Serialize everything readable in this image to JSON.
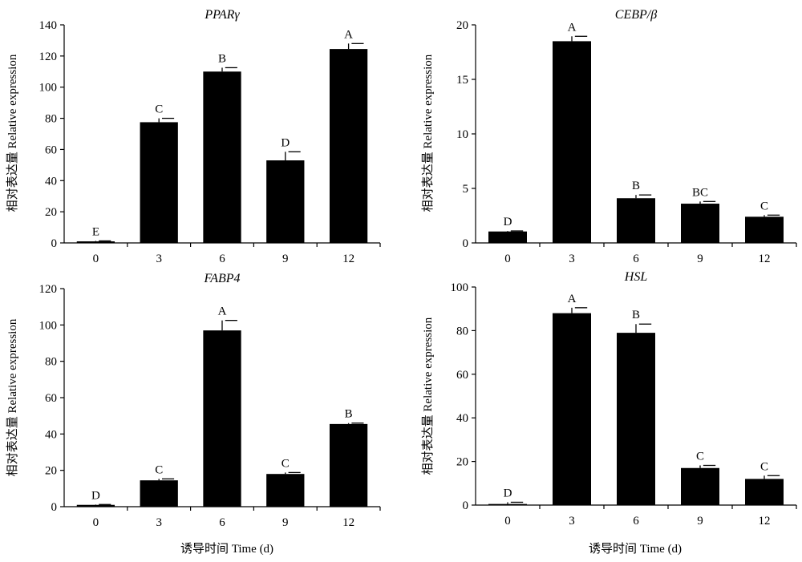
{
  "figure": {
    "xlabel": "诱导时间 Time (d)",
    "ylabel": "相对表达量 Relative expression"
  },
  "chart_data": [
    {
      "type": "bar",
      "title": "PPARγ",
      "categories": [
        "0",
        "3",
        "6",
        "9",
        "12"
      ],
      "values": [
        1,
        77.5,
        110,
        53,
        124.5
      ],
      "errors": [
        0.3,
        2.5,
        2.5,
        5.5,
        3.5
      ],
      "letters": [
        "E",
        "C",
        "B",
        "D",
        "A"
      ],
      "ylim": [
        0,
        140
      ],
      "yticks": [
        0,
        20,
        40,
        60,
        80,
        100,
        120,
        140
      ],
      "ylabel": "相对表达量 Relative expression",
      "xlabel": "",
      "bar_color": "#000000"
    },
    {
      "type": "bar",
      "title": "CEBP/β",
      "categories": [
        "0",
        "3",
        "6",
        "9",
        "12"
      ],
      "values": [
        1.05,
        18.5,
        4.1,
        3.6,
        2.4
      ],
      "errors": [
        0.05,
        0.45,
        0.3,
        0.2,
        0.15
      ],
      "letters": [
        "D",
        "A",
        "B",
        "BC",
        "C"
      ],
      "ylim": [
        0,
        20
      ],
      "yticks": [
        0,
        5,
        10,
        15,
        20
      ],
      "ylabel": "相对表达量 Relative expression",
      "xlabel": "",
      "bar_color": "#000000"
    },
    {
      "type": "bar",
      "title": "FABP4",
      "categories": [
        "0",
        "3",
        "6",
        "9",
        "12"
      ],
      "values": [
        1,
        14.5,
        97,
        18,
        45.5
      ],
      "errors": [
        0.2,
        0.8,
        5.5,
        0.8,
        0.5
      ],
      "letters": [
        "D",
        "C",
        "A",
        "C",
        "B"
      ],
      "ylim": [
        0,
        120
      ],
      "yticks": [
        0,
        20,
        40,
        60,
        80,
        100,
        120
      ],
      "ylabel": "相对表达量 Relative expression",
      "xlabel": "诱导时间 Time (d)",
      "bar_color": "#000000"
    },
    {
      "type": "bar",
      "title": "HSL",
      "categories": [
        "0",
        "3",
        "6",
        "9",
        "12"
      ],
      "values": [
        0.5,
        88,
        79,
        17,
        12
      ],
      "errors": [
        0.8,
        2.5,
        4,
        1.2,
        1.5
      ],
      "letters": [
        "D",
        "A",
        "B",
        "C",
        "C"
      ],
      "ylim": [
        0,
        100
      ],
      "yticks": [
        0,
        20,
        40,
        60,
        80,
        100
      ],
      "ylabel": "相对表达量 Relative expression",
      "xlabel": "诱导时间 Time (d)",
      "bar_color": "#000000"
    }
  ]
}
